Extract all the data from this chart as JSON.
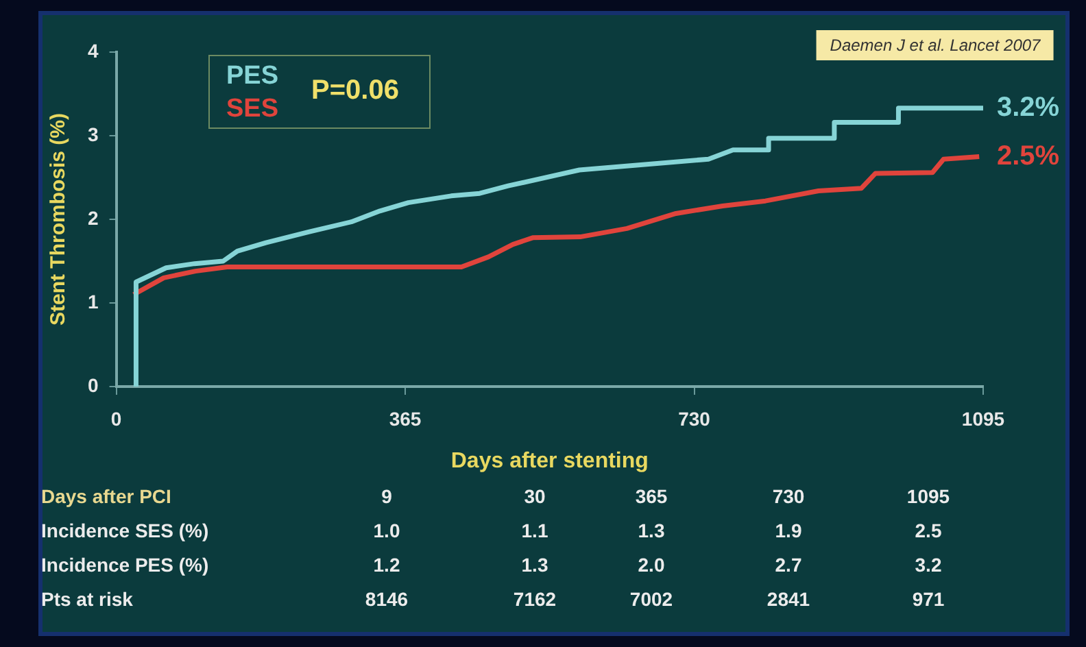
{
  "chart_data": {
    "type": "line",
    "xlabel": "Days after stenting",
    "ylabel": "Stent Thrombosis (%)",
    "xlim": [
      0,
      1095
    ],
    "xticks": [
      0,
      365,
      730,
      1095
    ],
    "ylim": [
      0,
      4
    ],
    "yticks": [
      0,
      1,
      2,
      3,
      4
    ],
    "grid": false,
    "legend": "top left",
    "marker": "none",
    "line_style": "solid",
    "series": [
      {
        "name": "PES",
        "color": "#86d4d6",
        "x": [
          25,
          25,
          63,
          99,
          135,
          153,
          189,
          243,
          297,
          333,
          369,
          423,
          459,
          495,
          585,
          748,
          779,
          824,
          824,
          907,
          907,
          988,
          988,
          1095
        ],
        "values": [
          0,
          1.25,
          1.42,
          1.47,
          1.5,
          1.62,
          1.72,
          1.85,
          1.97,
          2.1,
          2.2,
          2.28,
          2.31,
          2.4,
          2.59,
          2.72,
          2.83,
          2.83,
          2.97,
          2.97,
          3.16,
          3.16,
          3.33,
          3.33
        ]
      },
      {
        "name": "SES",
        "color": "#e0443c",
        "x": [
          22,
          60,
          100,
          140,
          436,
          470,
          501,
          526,
          586,
          645,
          707,
          766,
          820,
          887,
          941,
          959,
          1031,
          1045,
          1090
        ],
        "values": [
          1.1,
          1.3,
          1.38,
          1.43,
          1.43,
          1.55,
          1.7,
          1.78,
          1.79,
          1.89,
          2.07,
          2.16,
          2.22,
          2.34,
          2.37,
          2.55,
          2.56,
          2.72,
          2.75
        ]
      }
    ],
    "annotations": [
      "Daemen J et al. Lancet 2007",
      "P=0.06",
      {
        "text": "3.2%",
        "x": 1095,
        "y": 3.33
      },
      {
        "text": "2.5%",
        "x": 1095,
        "y": 2.75
      },
      "Days after PCI",
      "9",
      "30",
      "365",
      "730",
      "1095",
      "Incidence SES (%)",
      "1.0",
      "1.1",
      "1.3",
      "1.9",
      "2.5",
      "Incidence PES (%)",
      "1.2",
      "1.3",
      "2.0",
      "2.7",
      "3.2",
      "Pts at risk",
      "8146",
      "7162",
      "7002",
      "2841",
      "971"
    ]
  }
}
